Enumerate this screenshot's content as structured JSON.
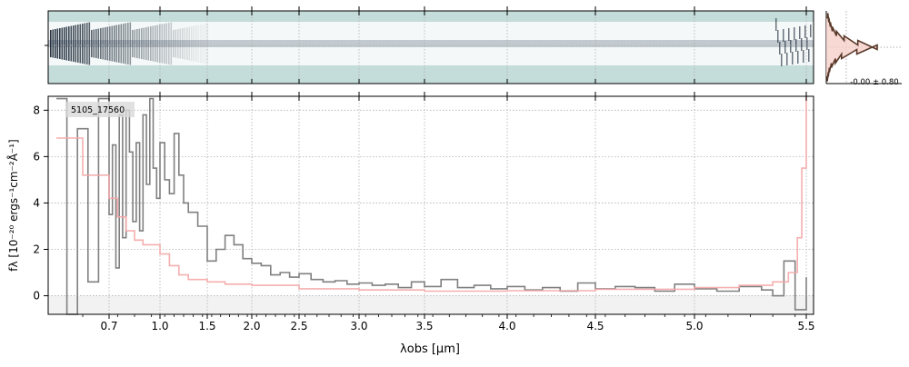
{
  "figure": {
    "colors": {
      "spectrum_line": "#808080",
      "model_line": "#f4a6a6",
      "model_band": "#f8d0c8",
      "twod_background": "#c4dcda",
      "twod_dark": "#0d1b2a",
      "histogram_line": "#5a3a2a",
      "histogram_fill": "#f8d0c8",
      "grid": "#b0b0b0"
    },
    "histogram": {
      "label": "-0.00 ± 0.80",
      "bins": [
        {
          "y": -1.4,
          "count": 0.02
        },
        {
          "y": -1.2,
          "count": 0.04
        },
        {
          "y": -1.0,
          "count": 0.06
        },
        {
          "y": -0.8,
          "count": 0.1
        },
        {
          "y": -0.6,
          "count": 0.18
        },
        {
          "y": -0.4,
          "count": 0.3
        },
        {
          "y": -0.2,
          "count": 0.6
        },
        {
          "y": 0.0,
          "count": 1.0
        },
        {
          "y": 0.2,
          "count": 0.62
        },
        {
          "y": 0.4,
          "count": 0.35
        },
        {
          "y": 0.6,
          "count": 0.2
        },
        {
          "y": 0.8,
          "count": 0.12
        },
        {
          "y": 1.0,
          "count": 0.08
        },
        {
          "y": 1.2,
          "count": 0.05
        },
        {
          "y": 1.4,
          "count": 0.03
        }
      ]
    }
  },
  "chart_data": {
    "type": "line",
    "object_id": "5105_17560",
    "xlabel": "λobs [μm]",
    "ylabel": "fλ [10⁻²⁰ ergs⁻¹cm⁻²Å⁻¹]",
    "xlim": [
      0.6,
      5.55
    ],
    "ylim": [
      -0.8,
      8.6
    ],
    "x_scale": "nonlinear (spectral resolution)",
    "grid": true,
    "x_ticks": [
      0.7,
      1.0,
      1.5,
      2.0,
      2.5,
      3.0,
      3.5,
      4.0,
      4.5,
      5.0,
      5.5
    ],
    "x_tick_labels": [
      "0.7",
      "1.0",
      "1.5",
      "2.0",
      "2.5",
      "3.0",
      "3.5",
      "4.0",
      "4.5",
      "5.0",
      "5.5"
    ],
    "y_ticks": [
      0,
      2,
      4,
      6,
      8
    ],
    "y_tick_labels": [
      "0",
      "2",
      "4",
      "6",
      "8"
    ],
    "series": [
      {
        "role": "data",
        "x": [
          0.6,
          0.62,
          0.64,
          0.66,
          0.68,
          0.7,
          0.72,
          0.74,
          0.76,
          0.78,
          0.8,
          0.82,
          0.84,
          0.86,
          0.88,
          0.9,
          0.92,
          0.94,
          0.96,
          0.98,
          1.0,
          1.05,
          1.1,
          1.15,
          1.2,
          1.25,
          1.3,
          1.4,
          1.5,
          1.6,
          1.7,
          1.8,
          1.9,
          2.0,
          2.1,
          2.2,
          2.3,
          2.4,
          2.5,
          2.6,
          2.7,
          2.8,
          2.9,
          3.0,
          3.1,
          3.2,
          3.3,
          3.4,
          3.5,
          3.6,
          3.7,
          3.8,
          3.9,
          4.0,
          4.1,
          4.2,
          4.3,
          4.4,
          4.5,
          4.6,
          4.7,
          4.8,
          4.9,
          5.0,
          5.1,
          5.2,
          5.3,
          5.35,
          5.4,
          5.45,
          5.5
        ],
        "y": [
          8.5,
          -0.8,
          7.2,
          0.6,
          8.5,
          3.5,
          6.5,
          1.2,
          7.8,
          2.5,
          8.0,
          6.2,
          3.2,
          6.6,
          2.8,
          7.8,
          4.8,
          8.5,
          5.5,
          4.2,
          6.6,
          5.0,
          4.4,
          7.0,
          5.2,
          4.0,
          3.6,
          3.0,
          1.5,
          2.0,
          2.6,
          2.2,
          1.6,
          1.4,
          1.3,
          0.9,
          1.0,
          0.8,
          0.95,
          0.7,
          0.6,
          0.65,
          0.5,
          0.55,
          0.45,
          0.5,
          0.35,
          0.6,
          0.4,
          0.7,
          0.35,
          0.45,
          0.3,
          0.4,
          0.25,
          0.35,
          0.2,
          0.55,
          0.3,
          0.4,
          0.35,
          0.2,
          0.5,
          0.3,
          0.2,
          0.4,
          0.25,
          0.0,
          1.5,
          -0.6,
          0.8
        ]
      },
      {
        "role": "model",
        "x": [
          0.6,
          0.65,
          0.7,
          0.75,
          0.8,
          0.85,
          0.9,
          1.0,
          1.1,
          1.2,
          1.3,
          1.5,
          1.7,
          2.0,
          2.5,
          3.0,
          3.5,
          4.0,
          4.5,
          5.0,
          5.2,
          5.35,
          5.42,
          5.46,
          5.48,
          5.5
        ],
        "y": [
          6.8,
          5.2,
          4.2,
          3.4,
          2.8,
          2.4,
          2.2,
          1.8,
          1.3,
          0.9,
          0.7,
          0.6,
          0.5,
          0.45,
          0.3,
          0.25,
          0.2,
          0.22,
          0.28,
          0.35,
          0.45,
          0.6,
          1.0,
          2.5,
          5.5,
          8.6
        ]
      }
    ]
  }
}
